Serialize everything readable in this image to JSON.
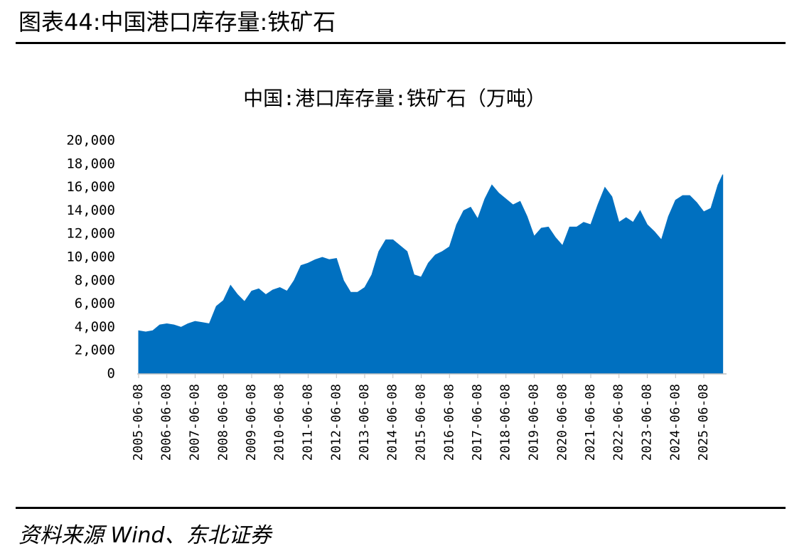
{
  "page_header": {
    "title": "图表44:中国港口库存量:铁矿石"
  },
  "chart_data": {
    "type": "area",
    "title": "中国:港口库存量:铁矿石（万吨）",
    "color": "#0070c0",
    "x": [
      "2005-06-08",
      "2005-09-08",
      "2005-12-08",
      "2006-03-08",
      "2006-06-08",
      "2006-09-08",
      "2006-12-08",
      "2007-03-08",
      "2007-06-08",
      "2007-09-08",
      "2007-12-08",
      "2008-03-08",
      "2008-06-08",
      "2008-09-08",
      "2008-12-08",
      "2009-03-08",
      "2009-06-08",
      "2009-09-08",
      "2009-12-08",
      "2010-03-08",
      "2010-06-08",
      "2010-09-08",
      "2010-12-08",
      "2011-03-08",
      "2011-06-08",
      "2011-09-08",
      "2011-12-08",
      "2012-03-08",
      "2012-06-08",
      "2012-09-08",
      "2012-12-08",
      "2013-03-08",
      "2013-06-08",
      "2013-09-08",
      "2013-12-08",
      "2014-03-08",
      "2014-06-08",
      "2014-09-08",
      "2014-12-08",
      "2015-03-08",
      "2015-06-08",
      "2015-09-08",
      "2015-12-08",
      "2016-03-08",
      "2016-06-08",
      "2016-09-08",
      "2016-12-08",
      "2017-03-08",
      "2017-06-08",
      "2017-09-08",
      "2017-12-08",
      "2018-03-08",
      "2018-06-08",
      "2018-09-08",
      "2018-12-08",
      "2019-03-08",
      "2019-06-08",
      "2019-09-08",
      "2019-12-08",
      "2020-03-08",
      "2020-06-08",
      "2020-09-08",
      "2020-12-08",
      "2021-03-08",
      "2021-06-08",
      "2021-09-08",
      "2021-12-08",
      "2022-03-08",
      "2022-06-08",
      "2022-09-08",
      "2022-12-08",
      "2023-03-08",
      "2023-06-08",
      "2023-09-08",
      "2023-12-08",
      "2024-03-08",
      "2024-06-08",
      "2024-09-08",
      "2024-12-08",
      "2025-03-08",
      "2025-06-08",
      "2025-09-08",
      "2025-12-08",
      "2026-02-08"
    ],
    "values": [
      3700,
      3600,
      3700,
      4200,
      4300,
      4200,
      4000,
      4300,
      4500,
      4400,
      4300,
      5800,
      6300,
      7600,
      6800,
      6200,
      7100,
      7300,
      6800,
      7200,
      7400,
      7100,
      8000,
      9300,
      9500,
      9800,
      10000,
      9800,
      9900,
      8000,
      7000,
      7000,
      7400,
      8500,
      10500,
      11500,
      11500,
      11000,
      10500,
      8500,
      8300,
      9500,
      10200,
      10500,
      10900,
      12800,
      14000,
      14300,
      13300,
      15000,
      16200,
      15500,
      15000,
      14500,
      14800,
      13500,
      11800,
      12500,
      12600,
      11700,
      11000,
      12600,
      12600,
      13000,
      12800,
      14500,
      16000,
      15200,
      13000,
      13400,
      13000,
      14000,
      12800,
      12200,
      11500,
      13500,
      14900,
      15300,
      15300,
      14700,
      13900,
      14200,
      16200,
      17100
    ],
    "ylim": [
      0,
      20000
    ],
    "yticks": [
      0,
      {
        "value": 2000,
        "label": "2,000"
      },
      {
        "value": 4000,
        "label": "4,000"
      },
      {
        "value": 6000,
        "label": "6,000"
      },
      {
        "value": 8000,
        "label": "8,000"
      },
      {
        "value": 10000,
        "label": "10,000"
      },
      {
        "value": 12000,
        "label": "12,000"
      },
      {
        "value": 14000,
        "label": "14,000"
      },
      {
        "value": 16000,
        "label": "16,000"
      },
      {
        "value": 18000,
        "label": "18,000"
      },
      {
        "value": 20000,
        "label": "20,000"
      }
    ],
    "xticks": [
      "2005-06-08",
      "2006-06-08",
      "2007-06-08",
      "2008-06-08",
      "2009-06-08",
      "2010-06-08",
      "2011-06-08",
      "2012-06-08",
      "2013-06-08",
      "2014-06-08",
      "2015-06-08",
      "2016-06-08",
      "2017-06-08",
      "2018-06-08",
      "2019-06-08",
      "2020-06-08",
      "2021-06-08",
      "2022-06-08",
      "2023-06-08",
      "2024-06-08",
      "2025-06-08"
    ]
  },
  "source": "资料来源 Wind、东北证券"
}
